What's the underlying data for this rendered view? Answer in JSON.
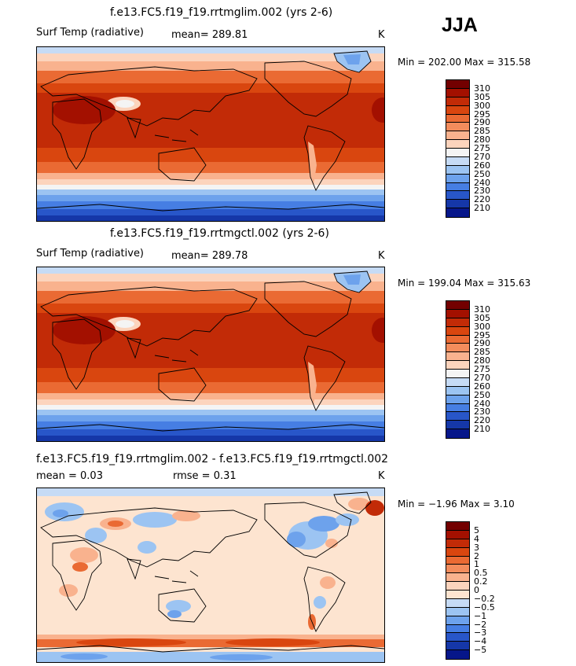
{
  "season": "JJA",
  "panels": [
    {
      "title": "f.e13.FC5.f19_f19.rrtmglim.002 (yrs 2-6)",
      "variable": "Surf Temp (radiative)",
      "stat1": "mean=  289.81",
      "units": "K",
      "minmax": "Min = 202.00 Max = 315.58",
      "levels": [
        "310",
        "305",
        "300",
        "295",
        "290",
        "285",
        "280",
        "275",
        "270",
        "260",
        "250",
        "240",
        "230",
        "220",
        "210"
      ],
      "colors": [
        "#730000",
        "#a31000",
        "#c22b07",
        "#d9460f",
        "#ea6a33",
        "#f38c5c",
        "#f9b28e",
        "#fcd4bd",
        "#f4f4f4",
        "#c6dbf5",
        "#9cc4f2",
        "#6da2ec",
        "#467ee3",
        "#2856c9",
        "#1537a8",
        "#06168a"
      ]
    },
    {
      "title": "f.e13.FC5.f19_f19.rrtmgctl.002 (yrs 2-6)",
      "variable": "Surf Temp (radiative)",
      "stat1": "mean=  289.78",
      "units": "K",
      "minmax": "Min = 199.04 Max = 315.63",
      "levels": [
        "310",
        "305",
        "300",
        "295",
        "290",
        "285",
        "280",
        "275",
        "270",
        "260",
        "250",
        "240",
        "230",
        "220",
        "210"
      ],
      "colors": [
        "#730000",
        "#a31000",
        "#c22b07",
        "#d9460f",
        "#ea6a33",
        "#f38c5c",
        "#f9b28e",
        "#fcd4bd",
        "#f4f4f4",
        "#c6dbf5",
        "#9cc4f2",
        "#6da2ec",
        "#467ee3",
        "#2856c9",
        "#1537a8",
        "#06168a"
      ]
    },
    {
      "title": "f.e13.FC5.f19_f19.rrtmglim.002 - f.e13.FC5.f19_f19.rrtmgctl.002",
      "stat1": "mean =   0.03",
      "stat2": "rmse =   0.31",
      "units": "K",
      "minmax": "Min =  −1.96 Max =   3.10",
      "levels": [
        "5",
        "4",
        "3",
        "2",
        "1",
        "0.5",
        "0.2",
        "0",
        "−0.2",
        "−0.5",
        "−1",
        "−2",
        "−3",
        "−4",
        "−5"
      ],
      "colors": [
        "#730000",
        "#a31000",
        "#c22b07",
        "#d9460f",
        "#ea6a33",
        "#f38c5c",
        "#f9b28e",
        "#fcd4bd",
        "#fde4d0",
        "#c6dbf5",
        "#9cc4f2",
        "#6da2ec",
        "#467ee3",
        "#2856c9",
        "#1537a8",
        "#06168a"
      ]
    }
  ]
}
